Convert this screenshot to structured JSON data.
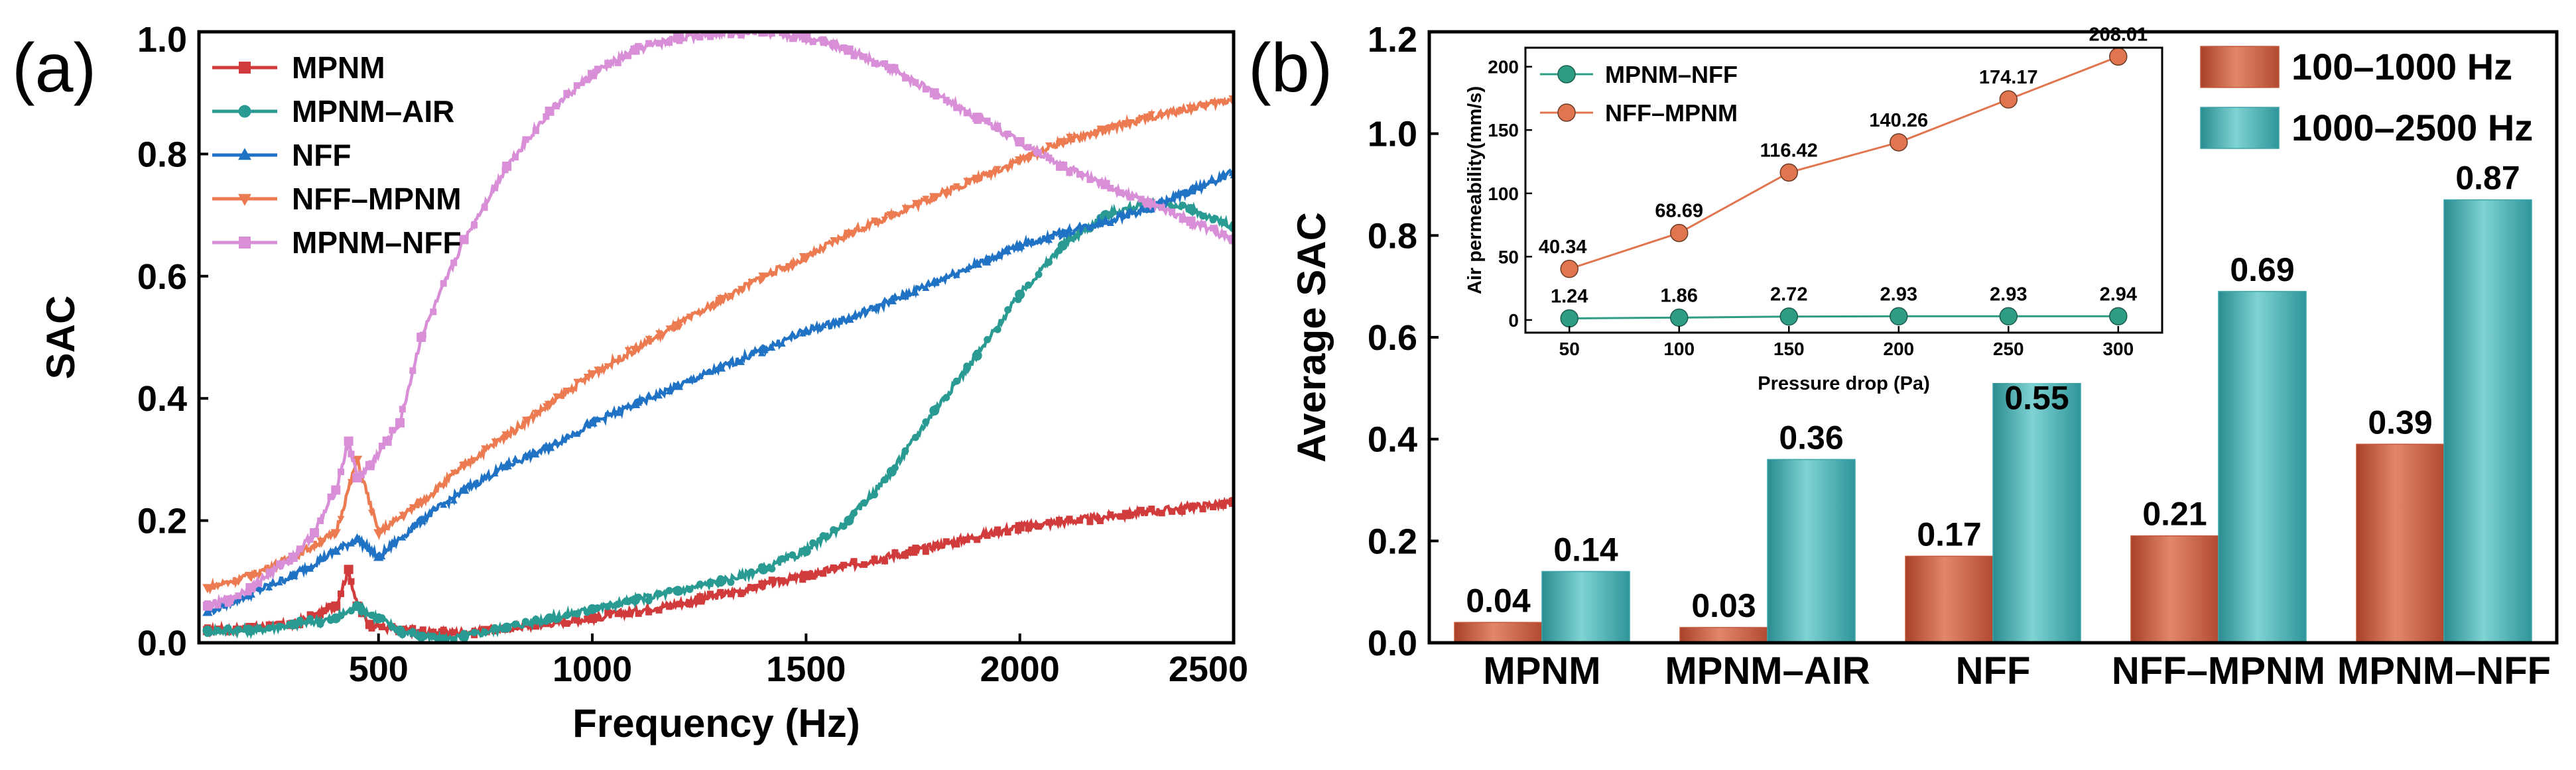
{
  "chart_data": [
    {
      "panel_label": "(a)",
      "type": "line",
      "xlabel": "Frequency (Hz)",
      "ylabel": "SAC",
      "xlim": [
        80,
        2500
      ],
      "ylim": [
        0,
        1.0
      ],
      "xticks": [
        500,
        1000,
        1500,
        2000,
        2500
      ],
      "xtick_labels": [
        "500",
        "1000",
        "1500",
        "2000",
        "2500"
      ],
      "yticks": [
        0.0,
        0.2,
        0.4,
        0.6,
        0.8,
        1.0
      ],
      "ytick_labels": [
        "0.0",
        "0.2",
        "0.4",
        "0.6",
        "0.8",
        "1.0"
      ],
      "legend_position": "top-left",
      "series": [
        {
          "name": "MPNM",
          "color": "#d13b3b",
          "marker": "square",
          "x": [
            100,
            200,
            300,
            400,
            430,
            450,
            480,
            550,
            650,
            750,
            1000,
            1250,
            1500,
            1750,
            2000,
            2250,
            2500
          ],
          "y": [
            0.02,
            0.025,
            0.03,
            0.06,
            0.12,
            0.06,
            0.03,
            0.02,
            0.015,
            0.02,
            0.04,
            0.07,
            0.11,
            0.15,
            0.19,
            0.21,
            0.23
          ]
        },
        {
          "name": "MPNM–AIR",
          "color": "#2a9b93",
          "marker": "circle",
          "x": [
            100,
            200,
            300,
            400,
            450,
            500,
            550,
            600,
            650,
            700,
            800,
            900,
            1000,
            1100,
            1200,
            1300,
            1400,
            1500,
            1600,
            1700,
            1800,
            1900,
            2000,
            2100,
            2200,
            2300,
            2400,
            2500
          ],
          "y": [
            0.02,
            0.02,
            0.03,
            0.04,
            0.06,
            0.04,
            0.02,
            0.01,
            0.005,
            0.01,
            0.025,
            0.04,
            0.055,
            0.07,
            0.085,
            0.1,
            0.12,
            0.15,
            0.2,
            0.28,
            0.38,
            0.47,
            0.57,
            0.65,
            0.7,
            0.72,
            0.71,
            0.68
          ]
        },
        {
          "name": "NFF",
          "color": "#1f72c4",
          "marker": "triangle-up",
          "x": [
            100,
            200,
            300,
            400,
            450,
            500,
            600,
            700,
            800,
            900,
            1000,
            1100,
            1200,
            1300,
            1400,
            1500,
            1600,
            1700,
            1800,
            1900,
            2000,
            2100,
            2200,
            2300,
            2400,
            2500
          ],
          "y": [
            0.05,
            0.08,
            0.11,
            0.15,
            0.17,
            0.14,
            0.2,
            0.25,
            0.29,
            0.32,
            0.36,
            0.39,
            0.42,
            0.45,
            0.48,
            0.51,
            0.53,
            0.56,
            0.59,
            0.62,
            0.65,
            0.67,
            0.69,
            0.71,
            0.74,
            0.77
          ]
        },
        {
          "name": "NFF–MPNM",
          "color": "#ec7b52",
          "marker": "triangle-down",
          "x": [
            100,
            200,
            300,
            400,
            450,
            500,
            600,
            700,
            800,
            900,
            1000,
            1100,
            1200,
            1300,
            1400,
            1500,
            1600,
            1700,
            1800,
            1900,
            2000,
            2100,
            2200,
            2300,
            2400,
            2500
          ],
          "y": [
            0.09,
            0.11,
            0.14,
            0.18,
            0.3,
            0.18,
            0.23,
            0.29,
            0.34,
            0.39,
            0.44,
            0.48,
            0.52,
            0.56,
            0.6,
            0.63,
            0.67,
            0.7,
            0.73,
            0.76,
            0.79,
            0.82,
            0.84,
            0.86,
            0.875,
            0.89
          ]
        },
        {
          "name": "MPNM–NFF",
          "color": "#d88fd8",
          "marker": "square",
          "x": [
            100,
            150,
            200,
            300,
            350,
            400,
            430,
            450,
            480,
            520,
            550,
            600,
            700,
            800,
            900,
            1000,
            1100,
            1200,
            1300,
            1400,
            1500,
            1600,
            1700,
            1800,
            1900,
            2000,
            2100,
            2200,
            2300,
            2400,
            2500
          ],
          "y": [
            0.06,
            0.07,
            0.09,
            0.14,
            0.18,
            0.25,
            0.33,
            0.27,
            0.29,
            0.33,
            0.36,
            0.5,
            0.66,
            0.78,
            0.87,
            0.93,
            0.97,
            0.99,
            1.0,
            1.0,
            0.99,
            0.97,
            0.94,
            0.9,
            0.86,
            0.82,
            0.78,
            0.75,
            0.72,
            0.69,
            0.66
          ]
        }
      ]
    },
    {
      "panel_label": "(b)",
      "type": "bar",
      "ylabel": "Average SAC",
      "ylim": [
        0,
        1.2
      ],
      "yticks": [
        0.0,
        0.2,
        0.4,
        0.6,
        0.8,
        1.0,
        1.2
      ],
      "ytick_labels": [
        "0.0",
        "0.2",
        "0.4",
        "0.6",
        "0.8",
        "1.0",
        "1.2"
      ],
      "categories": [
        "MPNM",
        "MPNM–AIR",
        "NFF",
        "NFF–MPNM",
        "MPNM–NFF"
      ],
      "legend_position": "top-right",
      "series": [
        {
          "name": "100–1000 Hz",
          "color": "#c5583c",
          "values": [
            0.04,
            0.03,
            0.17,
            0.21,
            0.39
          ],
          "labels": [
            "0.04",
            "0.03",
            "0.17",
            "0.21",
            "0.39"
          ]
        },
        {
          "name": "1000–2500 Hz",
          "color": "#3ba6aa",
          "values": [
            0.14,
            0.36,
            0.55,
            0.69,
            0.87
          ],
          "labels": [
            "0.14",
            "0.36",
            "0.55",
            "0.69",
            "0.87"
          ]
        }
      ],
      "inset": {
        "type": "line",
        "xlabel": "Pressure drop (Pa)",
        "ylabel": "Air permeability(mm/s)",
        "xlim": [
          30,
          320
        ],
        "ylim": [
          -10,
          215
        ],
        "xticks": [
          50,
          100,
          150,
          200,
          250,
          300
        ],
        "xtick_labels": [
          "50",
          "100",
          "150",
          "200",
          "250",
          "300"
        ],
        "yticks": [
          0,
          50,
          100,
          150,
          200
        ],
        "ytick_labels": [
          "0",
          "50",
          "100",
          "150",
          "200"
        ],
        "legend_position": "top-left",
        "series": [
          {
            "name": "MPNM–NFF",
            "color": "#2f9c84",
            "x": [
              50,
              100,
              150,
              200,
              250,
              300
            ],
            "y": [
              1.24,
              1.86,
              2.72,
              2.93,
              2.93,
              2.94
            ],
            "labels": [
              "1.24",
              "1.86",
              "2.72",
              "2.93",
              "2.93",
              "2.94"
            ]
          },
          {
            "name": "NFF–MPNM",
            "color": "#e0754f",
            "x": [
              50,
              100,
              150,
              200,
              250,
              300
            ],
            "y": [
              40.34,
              68.69,
              116.42,
              140.26,
              174.17,
              208.01
            ],
            "labels": [
              "40.34",
              "68.69",
              "116.42",
              "140.26",
              "174.17",
              "208.01"
            ]
          }
        ]
      }
    }
  ]
}
